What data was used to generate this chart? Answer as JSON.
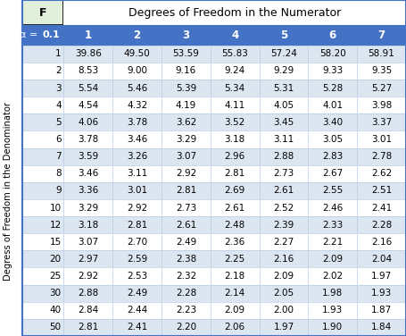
{
  "title": "Degrees of Freedom in the Numerator",
  "f_label": "F",
  "alpha_label": "α = ",
  "alpha_value": "0.1",
  "col_headers": [
    "1",
    "2",
    "3",
    "4",
    "5",
    "6",
    "7"
  ],
  "row_headers": [
    "1",
    "2",
    "3",
    "4",
    "5",
    "6",
    "7",
    "8",
    "9",
    "10",
    "12",
    "15",
    "20",
    "25",
    "30",
    "40",
    "50"
  ],
  "row_label": "Degress of Freedom in the Denominator",
  "table_data": [
    [
      39.86,
      49.5,
      53.59,
      55.83,
      57.24,
      58.2,
      58.91
    ],
    [
      8.53,
      9.0,
      9.16,
      9.24,
      9.29,
      9.33,
      9.35
    ],
    [
      5.54,
      5.46,
      5.39,
      5.34,
      5.31,
      5.28,
      5.27
    ],
    [
      4.54,
      4.32,
      4.19,
      4.11,
      4.05,
      4.01,
      3.98
    ],
    [
      4.06,
      3.78,
      3.62,
      3.52,
      3.45,
      3.4,
      3.37
    ],
    [
      3.78,
      3.46,
      3.29,
      3.18,
      3.11,
      3.05,
      3.01
    ],
    [
      3.59,
      3.26,
      3.07,
      2.96,
      2.88,
      2.83,
      2.78
    ],
    [
      3.46,
      3.11,
      2.92,
      2.81,
      2.73,
      2.67,
      2.62
    ],
    [
      3.36,
      3.01,
      2.81,
      2.69,
      2.61,
      2.55,
      2.51
    ],
    [
      3.29,
      2.92,
      2.73,
      2.61,
      2.52,
      2.46,
      2.41
    ],
    [
      3.18,
      2.81,
      2.61,
      2.48,
      2.39,
      2.33,
      2.28
    ],
    [
      3.07,
      2.7,
      2.49,
      2.36,
      2.27,
      2.21,
      2.16
    ],
    [
      2.97,
      2.59,
      2.38,
      2.25,
      2.16,
      2.09,
      2.04
    ],
    [
      2.92,
      2.53,
      2.32,
      2.18,
      2.09,
      2.02,
      1.97
    ],
    [
      2.88,
      2.49,
      2.28,
      2.14,
      2.05,
      1.98,
      1.93
    ],
    [
      2.84,
      2.44,
      2.23,
      2.09,
      2.0,
      1.93,
      1.87
    ],
    [
      2.81,
      2.41,
      2.2,
      2.06,
      1.97,
      1.9,
      1.84
    ]
  ],
  "bg_color": "#FFFFFF",
  "alpha_row_bg": "#4472C4",
  "alpha_row_text": "#FFFFFF",
  "row_even_bg": "#DCE6F1",
  "row_odd_bg": "#FFFFFF",
  "cell_text_color": "#000000",
  "border_color": "#4472C4",
  "f_box_bg": "#E2EFDA",
  "cell_border_color": "#B8CCE4",
  "title_bg": "#FFFFFF"
}
